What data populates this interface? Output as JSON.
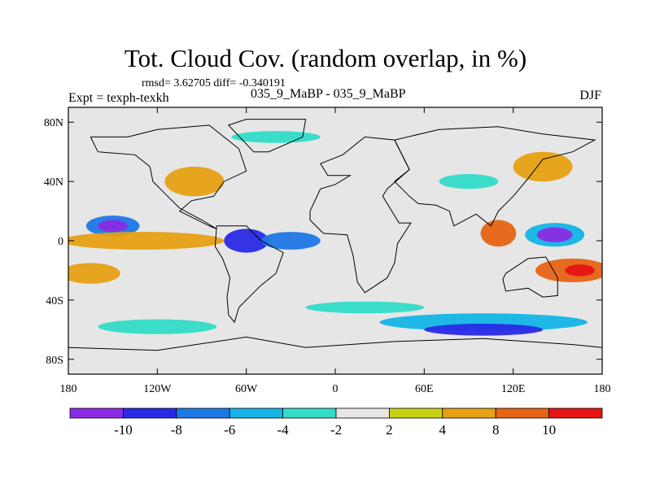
{
  "header": {
    "title": "Tot. Cloud Cov. (random overlap, in %)",
    "stats": "rmsd= 3.62705 diff= -0.340191",
    "expt": "Expt = texph-texkh",
    "case": "035_9_MaBP - 035_9_MaBP",
    "season": "DJF"
  },
  "axes": {
    "lat_ticks": [
      {
        "value": 80,
        "label": "80N"
      },
      {
        "value": 40,
        "label": "40N"
      },
      {
        "value": 0,
        "label": "0"
      },
      {
        "value": -40,
        "label": "40S"
      },
      {
        "value": -80,
        "label": "80S"
      }
    ],
    "lon_ticks": [
      {
        "value": -180,
        "label": "180"
      },
      {
        "value": -120,
        "label": "120W"
      },
      {
        "value": -60,
        "label": "60W"
      },
      {
        "value": 0,
        "label": "0"
      },
      {
        "value": 60,
        "label": "60E"
      },
      {
        "value": 120,
        "label": "120E"
      },
      {
        "value": 180,
        "label": "180"
      }
    ],
    "lon_range": [
      -180,
      180
    ],
    "lat_range": [
      -90,
      90
    ]
  },
  "colorbar": {
    "colors": [
      "#8a2be2",
      "#2a2ae6",
      "#1e78e6",
      "#14b4e6",
      "#32dcc8",
      "#e6e6e6",
      "#c8d214",
      "#e6a014",
      "#e66414",
      "#e61414"
    ],
    "boundary_labels": [
      "-10",
      "-8",
      "-6",
      "-4",
      "-2",
      "2",
      "4",
      "8",
      "10"
    ]
  },
  "field": {
    "background_color": "#e6e6e6",
    "blobs": [
      {
        "lon": -150,
        "lat": 10,
        "rx": 18,
        "ry": 7,
        "level": 2
      },
      {
        "lon": -150,
        "lat": 10,
        "rx": 10,
        "ry": 4,
        "level": 0
      },
      {
        "lon": 148,
        "lat": 4,
        "rx": 20,
        "ry": 8,
        "level": 3
      },
      {
        "lon": 148,
        "lat": 4,
        "rx": 12,
        "ry": 5,
        "level": 0
      },
      {
        "lon": -130,
        "lat": 0,
        "rx": 55,
        "ry": 6,
        "level": 7
      },
      {
        "lon": -165,
        "lat": -22,
        "rx": 20,
        "ry": 7,
        "level": 7
      },
      {
        "lon": 160,
        "lat": -20,
        "rx": 25,
        "ry": 8,
        "level": 8
      },
      {
        "lon": 165,
        "lat": -20,
        "rx": 10,
        "ry": 4,
        "level": 9
      },
      {
        "lon": 110,
        "lat": 5,
        "rx": 12,
        "ry": 9,
        "level": 8
      },
      {
        "lon": -95,
        "lat": 40,
        "rx": 20,
        "ry": 10,
        "level": 7
      },
      {
        "lon": 140,
        "lat": 50,
        "rx": 20,
        "ry": 10,
        "level": 7
      },
      {
        "lon": 100,
        "lat": -55,
        "rx": 70,
        "ry": 6,
        "level": 3
      },
      {
        "lon": 100,
        "lat": -60,
        "rx": 40,
        "ry": 4,
        "level": 1
      },
      {
        "lon": -60,
        "lat": 0,
        "rx": 15,
        "ry": 8,
        "level": 1
      },
      {
        "lon": -30,
        "lat": 0,
        "rx": 20,
        "ry": 6,
        "level": 2
      },
      {
        "lon": -120,
        "lat": -58,
        "rx": 40,
        "ry": 5,
        "level": 4
      },
      {
        "lon": 20,
        "lat": -45,
        "rx": 40,
        "ry": 4,
        "level": 4
      },
      {
        "lon": -40,
        "lat": 70,
        "rx": 30,
        "ry": 4,
        "level": 4
      },
      {
        "lon": 90,
        "lat": 40,
        "rx": 20,
        "ry": 5,
        "level": 4
      }
    ]
  }
}
